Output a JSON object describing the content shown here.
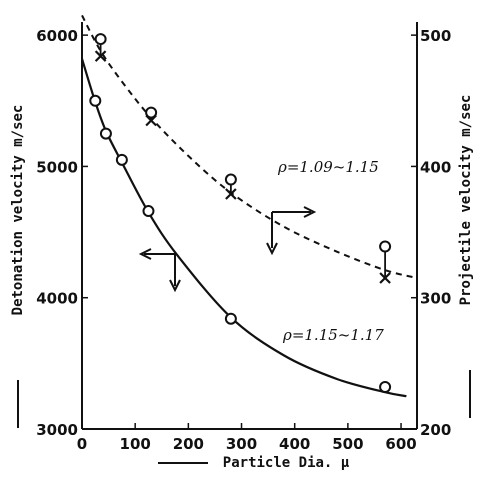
{
  "chart_data": [
    {
      "type": "scatter",
      "xlabel": "Particle Dia. μ",
      "ylabel": "Detonation velocity m/sec",
      "xlim": [
        0,
        630
      ],
      "ylim": [
        3000,
        6100
      ],
      "xticks": [
        "0",
        "100",
        "200",
        "300",
        "400",
        "500",
        "600"
      ],
      "yticks": [
        "3000",
        "4000",
        "5000",
        "6000"
      ],
      "series": [
        {
          "annotation": "ρ=1.15~1.17",
          "marker": "circle",
          "x": [
            25,
            45,
            75,
            125,
            280,
            570
          ],
          "y": [
            5500,
            5250,
            5050,
            4660,
            3840,
            3320
          ],
          "curve_x": [
            0,
            25,
            45,
            75,
            125,
            180,
            280,
            380,
            480,
            570,
            610
          ],
          "curve_y": [
            5820,
            5490,
            5270,
            5030,
            4650,
            4320,
            3850,
            3560,
            3380,
            3280,
            3250
          ]
        }
      ]
    },
    {
      "type": "scatter",
      "ylabel": "Projectile velocity m/sec",
      "ylim": [
        200,
        510
      ],
      "yticks": [
        "200",
        "300",
        "400",
        "500"
      ],
      "series": [
        {
          "annotation": "ρ=1.09~1.15",
          "marker_circle": {
            "x": [
              35,
              130,
              280,
              570
            ],
            "y": [
              497,
              441,
              390,
              339
            ]
          },
          "marker_cross": {
            "x": [
              35,
              130,
              280,
              570
            ],
            "y": [
              484,
              435,
              379,
              315
            ]
          },
          "curve_x": [
            0,
            35,
            80,
            130,
            200,
            280,
            380,
            480,
            570,
            630
          ],
          "curve_y": [
            515,
            488,
            462,
            437,
            408,
            380,
            354,
            335,
            321,
            315
          ]
        }
      ]
    }
  ],
  "arrow_icons": [
    "arrow-left-down-icon",
    "arrow-right-down-icon"
  ]
}
